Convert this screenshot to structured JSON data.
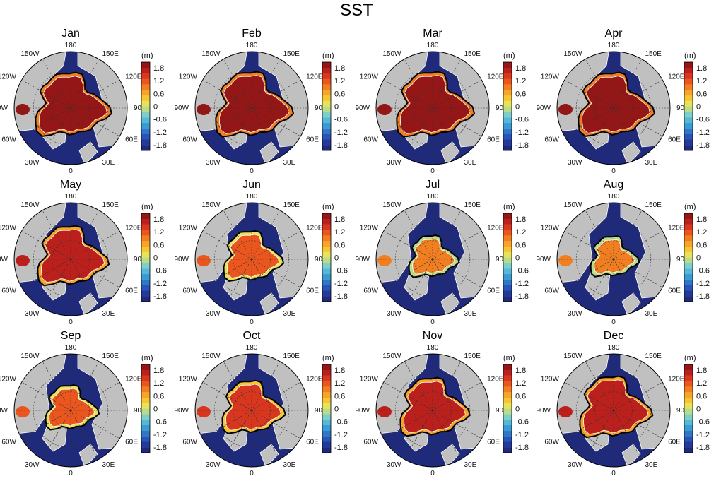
{
  "title": "SST",
  "colorbar": {
    "unit": "(m)",
    "ticks": [
      "1.8",
      "1.2",
      "0.6",
      "0",
      "-0.6",
      "-1.2",
      "-1.8"
    ],
    "range": [
      -1.8,
      1.8
    ],
    "colors": [
      "#1f2a7a",
      "#243a9a",
      "#2a55b8",
      "#2f78c8",
      "#3a9ad2",
      "#55b8d8",
      "#7fcfc8",
      "#b8dc8c",
      "#e8e25a",
      "#f6c534",
      "#f7a52a",
      "#f27e22",
      "#ea561e",
      "#d8361e",
      "#bb201c",
      "#941616"
    ]
  },
  "map": {
    "projection": "north polar stereographic",
    "longitude_labels": [
      "180",
      "150E",
      "120E",
      "90E",
      "60E",
      "30E",
      "0",
      "30W",
      "60W",
      "90W",
      "120W",
      "150W"
    ],
    "land_color": "#c0c0c0",
    "open_ocean_color": "#1f2a7a"
  },
  "panels": [
    {
      "month": "Jan",
      "ice_level": 1.6
    },
    {
      "month": "Feb",
      "ice_level": 1.65
    },
    {
      "month": "Mar",
      "ice_level": 1.65
    },
    {
      "month": "Apr",
      "ice_level": 1.6
    },
    {
      "month": "May",
      "ice_level": 1.45
    },
    {
      "month": "Jun",
      "ice_level": 1.1
    },
    {
      "month": "Jul",
      "ice_level": 0.8
    },
    {
      "month": "Aug",
      "ice_level": 0.75
    },
    {
      "month": "Sep",
      "ice_level": 0.9
    },
    {
      "month": "Oct",
      "ice_level": 1.2
    },
    {
      "month": "Nov",
      "ice_level": 1.4
    },
    {
      "month": "Dec",
      "ice_level": 1.5
    }
  ]
}
